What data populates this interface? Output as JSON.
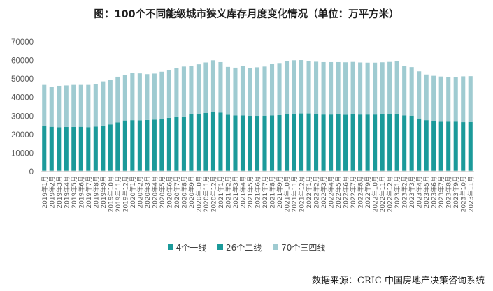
{
  "chart_data": {
    "type": "bar",
    "stacked": true,
    "title": "图：100个不同能级城市狭义库存月度变化情况（单位：万平方米）",
    "ylim": [
      0,
      70000
    ],
    "yticks": [
      "0",
      "10000",
      "20000",
      "30000",
      "40000",
      "50000",
      "60000",
      "70000"
    ],
    "categories": [
      "2019年1月",
      "2019年2月",
      "2019年3月",
      "2019年4月",
      "2019年5月",
      "2019年6月",
      "2019年7月",
      "2019年8月",
      "2019年9月",
      "2019年10月",
      "2019年11月",
      "2019年12月",
      "2020年1月",
      "2020年2月",
      "2020年3月",
      "2020年4月",
      "2020年5月",
      "2020年6月",
      "2020年7月",
      "2020年8月",
      "2020年9月",
      "2020年10月",
      "2020年11月",
      "2020年12月",
      "2021年1月",
      "2021年2月",
      "2021年3月",
      "2021年4月",
      "2021年5月",
      "2021年6月",
      "2021年7月",
      "2021年8月",
      "2021年9月",
      "2021年10月",
      "2021年11月",
      "2021年12月",
      "2022年1月",
      "2022年2月",
      "2022年3月",
      "2022年4月",
      "2022年5月",
      "2022年6月",
      "2022年7月",
      "2022年8月",
      "2022年9月",
      "2022年10月",
      "2022年11月",
      "2022年12月",
      "2023年1月",
      "2023年2月",
      "2023年3月",
      "2023年4月",
      "2023年5月",
      "2023年6月",
      "2023年7月",
      "2023年8月",
      "2023年9月",
      "2023年10月",
      "2023年11月"
    ],
    "series": [
      {
        "name": "4个一线",
        "color": "#dcdcdc",
        "values": [
          500,
          500,
          500,
          500,
          500,
          500,
          500,
          500,
          500,
          500,
          500,
          500,
          500,
          500,
          500,
          500,
          500,
          500,
          500,
          500,
          500,
          500,
          500,
          500,
          500,
          500,
          500,
          500,
          500,
          500,
          500,
          500,
          500,
          500,
          500,
          500,
          500,
          500,
          500,
          500,
          500,
          500,
          500,
          500,
          500,
          500,
          500,
          500,
          500,
          500,
          500,
          500,
          500,
          500,
          500,
          500,
          500,
          500,
          500
        ]
      },
      {
        "name": "26个二线",
        "color": "#1b9a9a",
        "values": [
          24000,
          23700,
          23400,
          23600,
          23600,
          23700,
          23500,
          23800,
          24400,
          25000,
          26100,
          27100,
          27300,
          27200,
          27400,
          27600,
          28000,
          28500,
          29300,
          29300,
          30600,
          30700,
          31200,
          31500,
          31300,
          30200,
          29800,
          29800,
          29600,
          29600,
          29700,
          29800,
          30000,
          30700,
          30700,
          30900,
          30900,
          30700,
          30300,
          30300,
          30400,
          30200,
          30400,
          30300,
          30300,
          30300,
          30600,
          30600,
          30800,
          29800,
          29700,
          28200,
          27300,
          26800,
          26400,
          26500,
          26500,
          26200,
          26300
        ]
      },
      {
        "name": "70个三四线",
        "color": "#9fcbd1",
        "values": [
          22300,
          21700,
          22400,
          22400,
          22700,
          22600,
          22800,
          23000,
          23800,
          23900,
          24600,
          24600,
          25300,
          25300,
          24700,
          24800,
          25400,
          25900,
          26200,
          26900,
          25900,
          26700,
          27200,
          28100,
          27300,
          25800,
          25800,
          26700,
          25800,
          26200,
          26500,
          27900,
          28100,
          28400,
          28900,
          28800,
          28300,
          28100,
          28300,
          28300,
          28200,
          28300,
          28300,
          28100,
          28000,
          28000,
          27900,
          28100,
          28200,
          26800,
          26200,
          25400,
          24600,
          24400,
          24400,
          24000,
          24100,
          24700,
          24700
        ]
      }
    ],
    "source": "数据来源：CRIC 中国房地产决策咨询系统"
  }
}
